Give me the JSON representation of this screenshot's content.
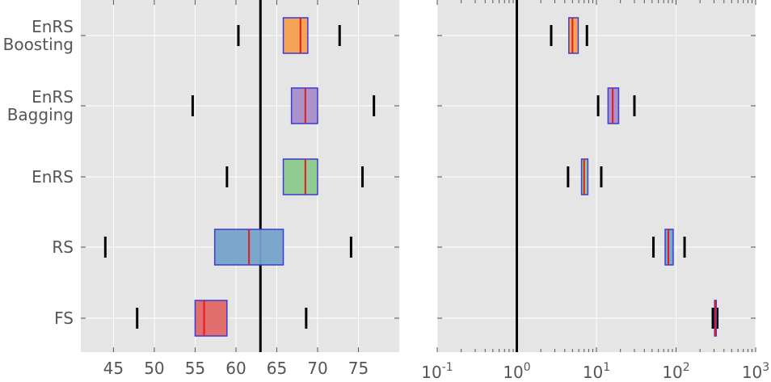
{
  "chart_data": [
    {
      "type": "boxplot",
      "xscale": "linear",
      "xlim": [
        41,
        80
      ],
      "xticks": [
        "45",
        "50",
        "55",
        "60",
        "65",
        "70",
        "75"
      ],
      "categories": [
        "EnRS\nBoosting",
        "EnRS\nBagging",
        "EnRS",
        "RS",
        "FS"
      ],
      "reference_line": 63,
      "grid": true,
      "boxes": [
        {
          "category": "EnRS\nBoosting",
          "whisker_low": 60.3,
          "q1": 65.8,
          "median": 67.9,
          "q3": 68.8,
          "whisker_high": 72.7,
          "color": "#f5a04e"
        },
        {
          "category": "EnRS\nBagging",
          "whisker_low": 54.7,
          "q1": 66.8,
          "median": 68.5,
          "q3": 70.0,
          "whisker_high": 76.9,
          "color": "#a98dc8"
        },
        {
          "category": "EnRS",
          "whisker_low": 58.9,
          "q1": 65.8,
          "median": 68.5,
          "q3": 70.0,
          "whisker_high": 75.5,
          "color": "#8cc98c"
        },
        {
          "category": "RS",
          "whisker_low": 44.0,
          "q1": 57.4,
          "median": 61.6,
          "q3": 65.8,
          "whisker_high": 74.1,
          "color": "#76a3cb"
        },
        {
          "category": "FS",
          "whisker_low": 47.9,
          "q1": 55.0,
          "median": 56.1,
          "q3": 58.9,
          "whisker_high": 68.6,
          "color": "#e06666"
        }
      ]
    },
    {
      "type": "boxplot",
      "xscale": "log",
      "xlim": [
        0.1,
        1000
      ],
      "xticks": [
        {
          "base": "10",
          "exp": "-1"
        },
        {
          "base": "10",
          "exp": "0"
        },
        {
          "base": "10",
          "exp": "1"
        },
        {
          "base": "10",
          "exp": "2"
        },
        {
          "base": "10",
          "exp": "3"
        }
      ],
      "categories": [
        "EnRS\nBoosting",
        "EnRS\nBagging",
        "EnRS",
        "RS",
        "FS"
      ],
      "reference_line": 1,
      "grid": true,
      "boxes": [
        {
          "category": "EnRS\nBoosting",
          "whisker_low": 2.7,
          "q1": 4.5,
          "median": 5.0,
          "q3": 5.9,
          "whisker_high": 7.6,
          "color": "#f5a04e"
        },
        {
          "category": "EnRS\nBagging",
          "whisker_low": 10.5,
          "q1": 14.0,
          "median": 16.0,
          "q3": 19.0,
          "whisker_high": 30.0,
          "color": "#a98dc8"
        },
        {
          "category": "EnRS",
          "whisker_low": 4.4,
          "q1": 6.5,
          "median": 7.0,
          "q3": 7.8,
          "whisker_high": 11.5,
          "color": "#8cc98c"
        },
        {
          "category": "RS",
          "whisker_low": 52.0,
          "q1": 73.0,
          "median": 80.0,
          "q3": 92.0,
          "whisker_high": 128.0,
          "color": "#76a3cb"
        },
        {
          "category": "FS",
          "whisker_low": 290.0,
          "q1": 305.0,
          "median": 312.0,
          "q3": 320.0,
          "whisker_high": 330.0,
          "color": "#e06666"
        }
      ]
    }
  ],
  "colors": {
    "panel_bg": "#e5e5e5",
    "grid": "#ffffff",
    "box_edge": "#3b3bd6",
    "median": "#e41a1c",
    "whisker_cap": "#000000",
    "reference_line": "#000000",
    "tick_text": "#555555"
  }
}
